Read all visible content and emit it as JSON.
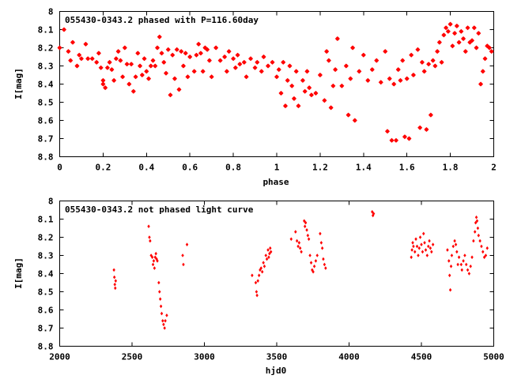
{
  "chart_data": [
    {
      "type": "scatter",
      "title": "055430-0343.2 phased with P=116.60day",
      "xlabel": "phase",
      "ylabel": "I[mag]",
      "xlim": [
        0,
        2
      ],
      "ylim": [
        8.8,
        8.0
      ],
      "y_inverted": true,
      "xticks": [
        "0",
        "0.2",
        "0.4",
        "0.6",
        "0.8",
        "1",
        "1.2",
        "1.4",
        "1.6",
        "1.8",
        "2"
      ],
      "yticks": [
        "8",
        "8.1",
        "8.2",
        "8.3",
        "8.4",
        "8.5",
        "8.6",
        "8.7",
        "8.8"
      ],
      "marker": "star",
      "series_color": "#ff0000",
      "points": [
        [
          0.0,
          8.2
        ],
        [
          0.02,
          8.1
        ],
        [
          0.04,
          8.22
        ],
        [
          0.05,
          8.27
        ],
        [
          0.06,
          8.17
        ],
        [
          0.08,
          8.3
        ],
        [
          0.09,
          8.24
        ],
        [
          0.1,
          8.26
        ],
        [
          0.12,
          8.18
        ],
        [
          0.13,
          8.26
        ],
        [
          0.15,
          8.26
        ],
        [
          0.17,
          8.28
        ],
        [
          0.18,
          8.23
        ],
        [
          0.19,
          8.31
        ],
        [
          0.2,
          8.38
        ],
        [
          0.2,
          8.4
        ],
        [
          0.21,
          8.42
        ],
        [
          0.22,
          8.31
        ],
        [
          0.23,
          8.28
        ],
        [
          0.24,
          8.32
        ],
        [
          0.25,
          8.38
        ],
        [
          0.26,
          8.26
        ],
        [
          0.27,
          8.22
        ],
        [
          0.28,
          8.27
        ],
        [
          0.29,
          8.36
        ],
        [
          0.3,
          8.2
        ],
        [
          0.31,
          8.29
        ],
        [
          0.32,
          8.4
        ],
        [
          0.33,
          8.29
        ],
        [
          0.34,
          8.44
        ],
        [
          0.35,
          8.36
        ],
        [
          0.36,
          8.23
        ],
        [
          0.37,
          8.3
        ],
        [
          0.38,
          8.35
        ],
        [
          0.39,
          8.26
        ],
        [
          0.4,
          8.33
        ],
        [
          0.41,
          8.37
        ],
        [
          0.42,
          8.3
        ],
        [
          0.43,
          8.27
        ],
        [
          0.44,
          8.3
        ],
        [
          0.45,
          8.2
        ],
        [
          0.46,
          8.14
        ],
        [
          0.47,
          8.23
        ],
        [
          0.48,
          8.28
        ],
        [
          0.49,
          8.34
        ],
        [
          0.5,
          8.21
        ],
        [
          0.51,
          8.46
        ],
        [
          0.52,
          8.24
        ],
        [
          0.53,
          8.37
        ],
        [
          0.54,
          8.21
        ],
        [
          0.55,
          8.43
        ],
        [
          0.56,
          8.22
        ],
        [
          0.57,
          8.3
        ],
        [
          0.58,
          8.23
        ],
        [
          0.59,
          8.36
        ],
        [
          0.6,
          8.25
        ],
        [
          0.62,
          8.33
        ],
        [
          0.63,
          8.24
        ],
        [
          0.64,
          8.18
        ],
        [
          0.65,
          8.23
        ],
        [
          0.66,
          8.33
        ],
        [
          0.67,
          8.2
        ],
        [
          0.68,
          8.21
        ],
        [
          0.69,
          8.27
        ],
        [
          0.7,
          8.36
        ],
        [
          0.72,
          8.2
        ],
        [
          0.74,
          8.27
        ],
        [
          0.76,
          8.25
        ],
        [
          0.77,
          8.33
        ],
        [
          0.78,
          8.22
        ],
        [
          0.8,
          8.26
        ],
        [
          0.81,
          8.31
        ],
        [
          0.82,
          8.24
        ],
        [
          0.83,
          8.29
        ],
        [
          0.85,
          8.28
        ],
        [
          0.86,
          8.36
        ],
        [
          0.88,
          8.26
        ],
        [
          0.9,
          8.31
        ],
        [
          0.91,
          8.28
        ],
        [
          0.93,
          8.33
        ],
        [
          0.94,
          8.25
        ],
        [
          0.96,
          8.3
        ],
        [
          0.98,
          8.28
        ],
        [
          1.0,
          8.36
        ],
        [
          1.01,
          8.32
        ],
        [
          1.02,
          8.45
        ],
        [
          1.03,
          8.28
        ],
        [
          1.04,
          8.52
        ],
        [
          1.05,
          8.38
        ],
        [
          1.06,
          8.3
        ],
        [
          1.07,
          8.41
        ],
        [
          1.08,
          8.48
        ],
        [
          1.09,
          8.33
        ],
        [
          1.1,
          8.52
        ],
        [
          1.12,
          8.38
        ],
        [
          1.13,
          8.44
        ],
        [
          1.14,
          8.33
        ],
        [
          1.15,
          8.42
        ],
        [
          1.16,
          8.46
        ],
        [
          1.18,
          8.45
        ],
        [
          1.2,
          8.35
        ],
        [
          1.22,
          8.49
        ],
        [
          1.23,
          8.22
        ],
        [
          1.24,
          8.27
        ],
        [
          1.25,
          8.53
        ],
        [
          1.26,
          8.41
        ],
        [
          1.27,
          8.32
        ],
        [
          1.28,
          8.15
        ],
        [
          1.3,
          8.41
        ],
        [
          1.32,
          8.3
        ],
        [
          1.33,
          8.57
        ],
        [
          1.34,
          8.37
        ],
        [
          1.35,
          8.2
        ],
        [
          1.36,
          8.6
        ],
        [
          1.38,
          8.33
        ],
        [
          1.4,
          8.24
        ],
        [
          1.42,
          8.38
        ],
        [
          1.44,
          8.32
        ],
        [
          1.46,
          8.27
        ],
        [
          1.48,
          8.39
        ],
        [
          1.5,
          8.22
        ],
        [
          1.51,
          8.66
        ],
        [
          1.52,
          8.37
        ],
        [
          1.53,
          8.71
        ],
        [
          1.54,
          8.4
        ],
        [
          1.55,
          8.71
        ],
        [
          1.56,
          8.32
        ],
        [
          1.57,
          8.38
        ],
        [
          1.58,
          8.27
        ],
        [
          1.59,
          8.69
        ],
        [
          1.6,
          8.37
        ],
        [
          1.61,
          8.7
        ],
        [
          1.62,
          8.24
        ],
        [
          1.63,
          8.35
        ],
        [
          1.65,
          8.21
        ],
        [
          1.66,
          8.64
        ],
        [
          1.67,
          8.28
        ],
        [
          1.68,
          8.33
        ],
        [
          1.69,
          8.65
        ],
        [
          1.7,
          8.29
        ],
        [
          1.71,
          8.57
        ],
        [
          1.72,
          8.27
        ],
        [
          1.73,
          8.3
        ],
        [
          1.74,
          8.22
        ],
        [
          1.75,
          8.17
        ],
        [
          1.76,
          8.28
        ],
        [
          1.77,
          8.13
        ],
        [
          1.78,
          8.09
        ],
        [
          1.79,
          8.11
        ],
        [
          1.8,
          8.07
        ],
        [
          1.81,
          8.19
        ],
        [
          1.82,
          8.12
        ],
        [
          1.83,
          8.08
        ],
        [
          1.84,
          8.17
        ],
        [
          1.85,
          8.11
        ],
        [
          1.86,
          8.15
        ],
        [
          1.87,
          8.22
        ],
        [
          1.88,
          8.09
        ],
        [
          1.89,
          8.17
        ],
        [
          1.9,
          8.16
        ],
        [
          1.91,
          8.09
        ],
        [
          1.92,
          8.2
        ],
        [
          1.93,
          8.12
        ],
        [
          1.94,
          8.4
        ],
        [
          1.95,
          8.33
        ],
        [
          1.96,
          8.26
        ],
        [
          1.97,
          8.19
        ],
        [
          1.98,
          8.2
        ],
        [
          1.99,
          8.22
        ]
      ]
    },
    {
      "type": "scatter",
      "title": "055430-0343.2 not phased light curve",
      "xlabel": "hjd0",
      "ylabel": "I[mag]",
      "xlim": [
        2000,
        5000
      ],
      "ylim": [
        8.8,
        8.0
      ],
      "y_inverted": true,
      "xticks": [
        "2000",
        "2500",
        "3000",
        "3500",
        "4000",
        "4500",
        "5000"
      ],
      "yticks": [
        "8",
        "8.1",
        "8.2",
        "8.3",
        "8.4",
        "8.5",
        "8.6",
        "8.7",
        "8.8"
      ],
      "marker": "diamond",
      "series_color": "#ff0000",
      "points": [
        [
          2375,
          8.38
        ],
        [
          2378,
          8.42
        ],
        [
          2381,
          8.46
        ],
        [
          2384,
          8.48
        ],
        [
          2387,
          8.44
        ],
        [
          2615,
          8.14
        ],
        [
          2620,
          8.2
        ],
        [
          2625,
          8.22
        ],
        [
          2632,
          8.3
        ],
        [
          2640,
          8.31
        ],
        [
          2645,
          8.35
        ],
        [
          2650,
          8.33
        ],
        [
          2655,
          8.37
        ],
        [
          2660,
          8.31
        ],
        [
          2665,
          8.29
        ],
        [
          2670,
          8.32
        ],
        [
          2675,
          8.33
        ],
        [
          2685,
          8.45
        ],
        [
          2690,
          8.5
        ],
        [
          2695,
          8.54
        ],
        [
          2700,
          8.58
        ],
        [
          2705,
          8.62
        ],
        [
          2712,
          8.66
        ],
        [
          2718,
          8.68
        ],
        [
          2725,
          8.7
        ],
        [
          2730,
          8.66
        ],
        [
          2740,
          8.63
        ],
        [
          2850,
          8.3
        ],
        [
          2855,
          8.35
        ],
        [
          2880,
          8.24
        ],
        [
          3330,
          8.41
        ],
        [
          3355,
          8.45
        ],
        [
          3360,
          8.5
        ],
        [
          3364,
          8.52
        ],
        [
          3370,
          8.44
        ],
        [
          3378,
          8.41
        ],
        [
          3385,
          8.38
        ],
        [
          3392,
          8.37
        ],
        [
          3400,
          8.39
        ],
        [
          3408,
          8.34
        ],
        [
          3415,
          8.36
        ],
        [
          3425,
          8.3
        ],
        [
          3432,
          8.32
        ],
        [
          3440,
          8.27
        ],
        [
          3445,
          8.31
        ],
        [
          3450,
          8.29
        ],
        [
          3455,
          8.26
        ],
        [
          3460,
          8.28
        ],
        [
          3600,
          8.21
        ],
        [
          3630,
          8.17
        ],
        [
          3640,
          8.22
        ],
        [
          3648,
          8.25
        ],
        [
          3655,
          8.23
        ],
        [
          3662,
          8.26
        ],
        [
          3670,
          8.28
        ],
        [
          3690,
          8.11
        ],
        [
          3695,
          8.14
        ],
        [
          3700,
          8.12
        ],
        [
          3708,
          8.16
        ],
        [
          3715,
          8.19
        ],
        [
          3722,
          8.21
        ],
        [
          3730,
          8.3
        ],
        [
          3738,
          8.34
        ],
        [
          3745,
          8.38
        ],
        [
          3752,
          8.39
        ],
        [
          3760,
          8.36
        ],
        [
          3770,
          8.33
        ],
        [
          3780,
          8.3
        ],
        [
          3800,
          8.18
        ],
        [
          3808,
          8.23
        ],
        [
          3815,
          8.26
        ],
        [
          3822,
          8.32
        ],
        [
          3830,
          8.35
        ],
        [
          3838,
          8.37
        ],
        [
          4160,
          8.06
        ],
        [
          4165,
          8.08
        ],
        [
          4170,
          8.07
        ],
        [
          4430,
          8.31
        ],
        [
          4435,
          8.27
        ],
        [
          4440,
          8.23
        ],
        [
          4445,
          8.25
        ],
        [
          4455,
          8.28
        ],
        [
          4462,
          8.21
        ],
        [
          4470,
          8.25
        ],
        [
          4478,
          8.3
        ],
        [
          4485,
          8.26
        ],
        [
          4492,
          8.2
        ],
        [
          4500,
          8.24
        ],
        [
          4508,
          8.28
        ],
        [
          4515,
          8.18
        ],
        [
          4522,
          8.23
        ],
        [
          4530,
          8.27
        ],
        [
          4540,
          8.3
        ],
        [
          4548,
          8.25
        ],
        [
          4555,
          8.22
        ],
        [
          4562,
          8.26
        ],
        [
          4570,
          8.28
        ],
        [
          4580,
          8.24
        ],
        [
          4680,
          8.27
        ],
        [
          4690,
          8.33
        ],
        [
          4695,
          8.41
        ],
        [
          4700,
          8.49
        ],
        [
          4705,
          8.36
        ],
        [
          4710,
          8.3
        ],
        [
          4720,
          8.25
        ],
        [
          4730,
          8.22
        ],
        [
          4738,
          8.24
        ],
        [
          4745,
          8.28
        ],
        [
          4752,
          8.35
        ],
        [
          4760,
          8.31
        ],
        [
          4775,
          8.35
        ],
        [
          4780,
          8.38
        ],
        [
          4790,
          8.33
        ],
        [
          4800,
          8.3
        ],
        [
          4810,
          8.35
        ],
        [
          4820,
          8.38
        ],
        [
          4830,
          8.4
        ],
        [
          4840,
          8.36
        ],
        [
          4850,
          8.31
        ],
        [
          4860,
          8.22
        ],
        [
          4870,
          8.17
        ],
        [
          4875,
          8.12
        ],
        [
          4880,
          8.09
        ],
        [
          4885,
          8.11
        ],
        [
          4890,
          8.15
        ],
        [
          4895,
          8.19
        ],
        [
          4905,
          8.22
        ],
        [
          4915,
          8.25
        ],
        [
          4925,
          8.28
        ],
        [
          4935,
          8.31
        ],
        [
          4945,
          8.3
        ],
        [
          4955,
          8.26
        ]
      ]
    }
  ]
}
